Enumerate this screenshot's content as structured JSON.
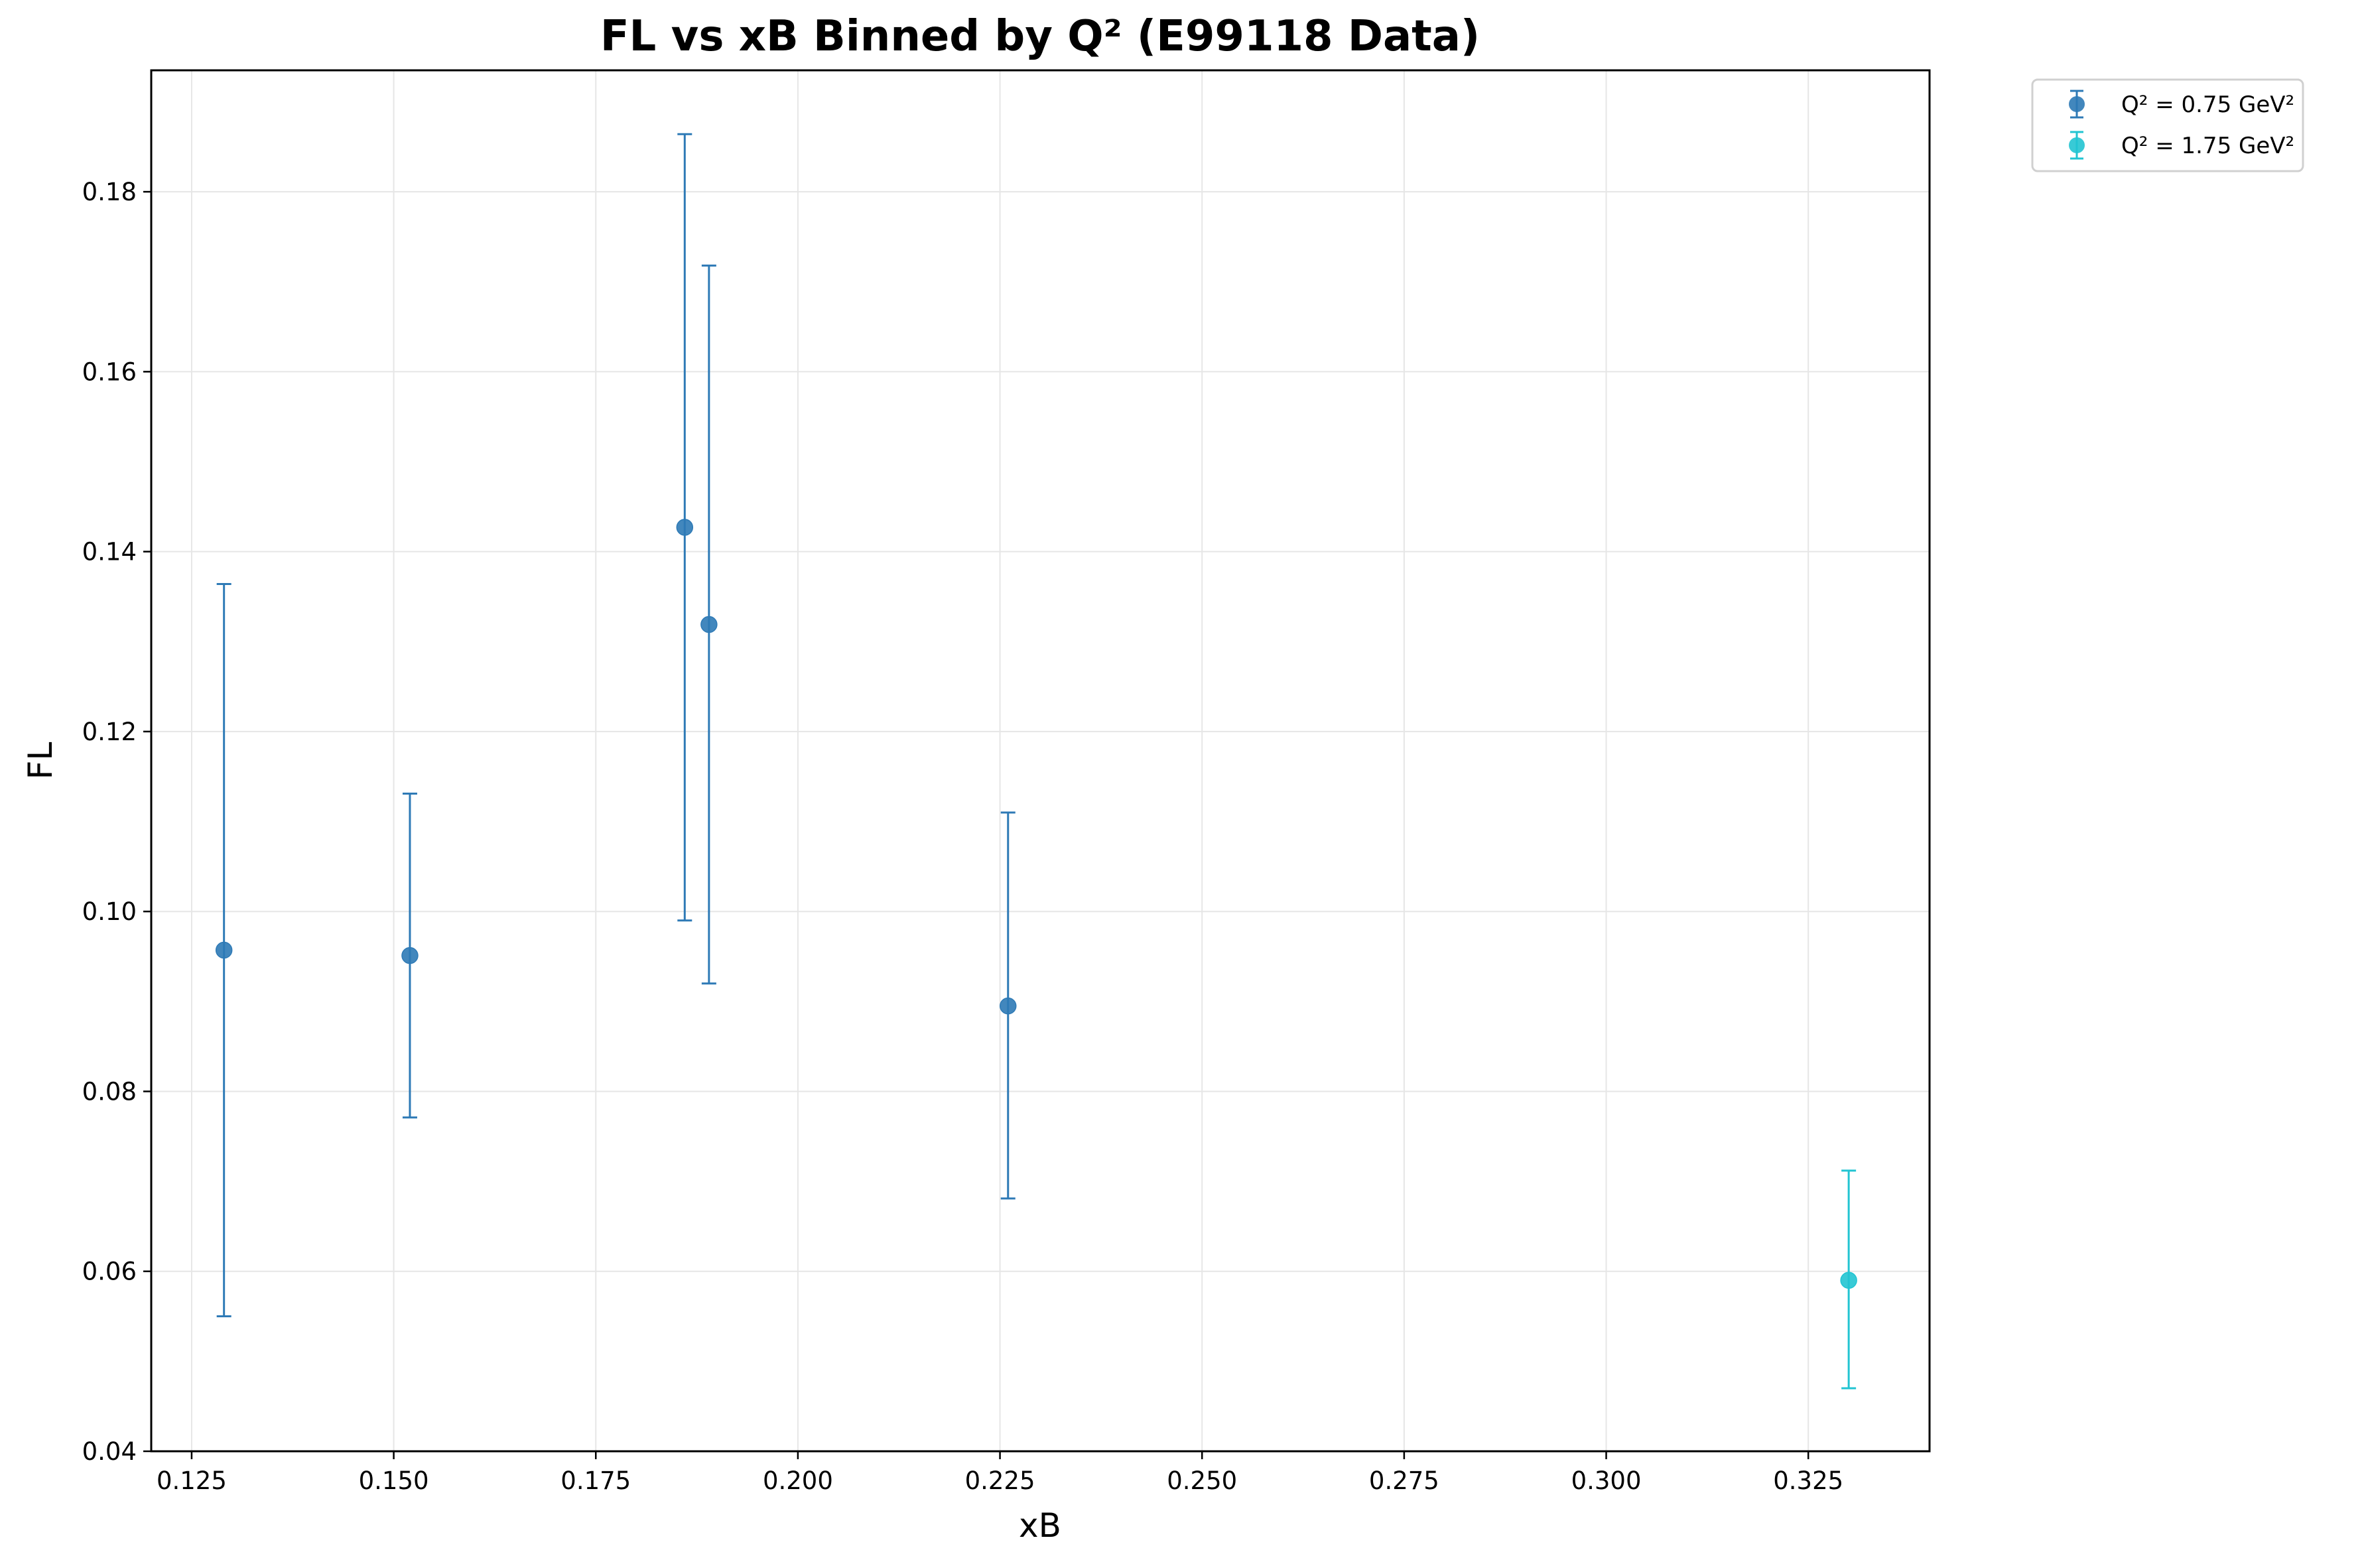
{
  "chart_data": {
    "type": "scatter",
    "title": "FL vs xB Binned by Q² (E99118 Data)",
    "xlabel": "xB",
    "ylabel": "FL",
    "xlim": [
      0.12,
      0.34
    ],
    "ylim": [
      0.04,
      0.1935
    ],
    "xticks": [
      0.125,
      0.15,
      0.175,
      0.2,
      0.225,
      0.25,
      0.275,
      0.3,
      0.325
    ],
    "xtick_labels": [
      "0.125",
      "0.150",
      "0.175",
      "0.200",
      "0.225",
      "0.250",
      "0.275",
      "0.300",
      "0.325"
    ],
    "yticks": [
      0.04,
      0.06,
      0.08,
      0.1,
      0.12,
      0.14,
      0.16,
      0.18
    ],
    "ytick_labels": [
      "0.04",
      "0.06",
      "0.08",
      "0.10",
      "0.12",
      "0.14",
      "0.16",
      "0.18"
    ],
    "grid": true,
    "legend_position": "outside-top-right",
    "series": [
      {
        "name": "Q² = 0.75 GeV²",
        "color": "#2e7ab6",
        "points": [
          {
            "x": 0.129,
            "y": 0.0957,
            "yerr_low": 0.055,
            "yerr_high": 0.1364
          },
          {
            "x": 0.152,
            "y": 0.0951,
            "yerr_low": 0.0771,
            "yerr_high": 0.1131
          },
          {
            "x": 0.186,
            "y": 0.1427,
            "yerr_low": 0.099,
            "yerr_high": 0.1864
          },
          {
            "x": 0.189,
            "y": 0.1319,
            "yerr_low": 0.092,
            "yerr_high": 0.1718
          },
          {
            "x": 0.226,
            "y": 0.0895,
            "yerr_low": 0.0681,
            "yerr_high": 0.111
          }
        ]
      },
      {
        "name": "Q² = 1.75 GeV²",
        "color": "#22c4d2",
        "points": [
          {
            "x": 0.33,
            "y": 0.059,
            "yerr_low": 0.047,
            "yerr_high": 0.0712
          }
        ]
      }
    ]
  }
}
